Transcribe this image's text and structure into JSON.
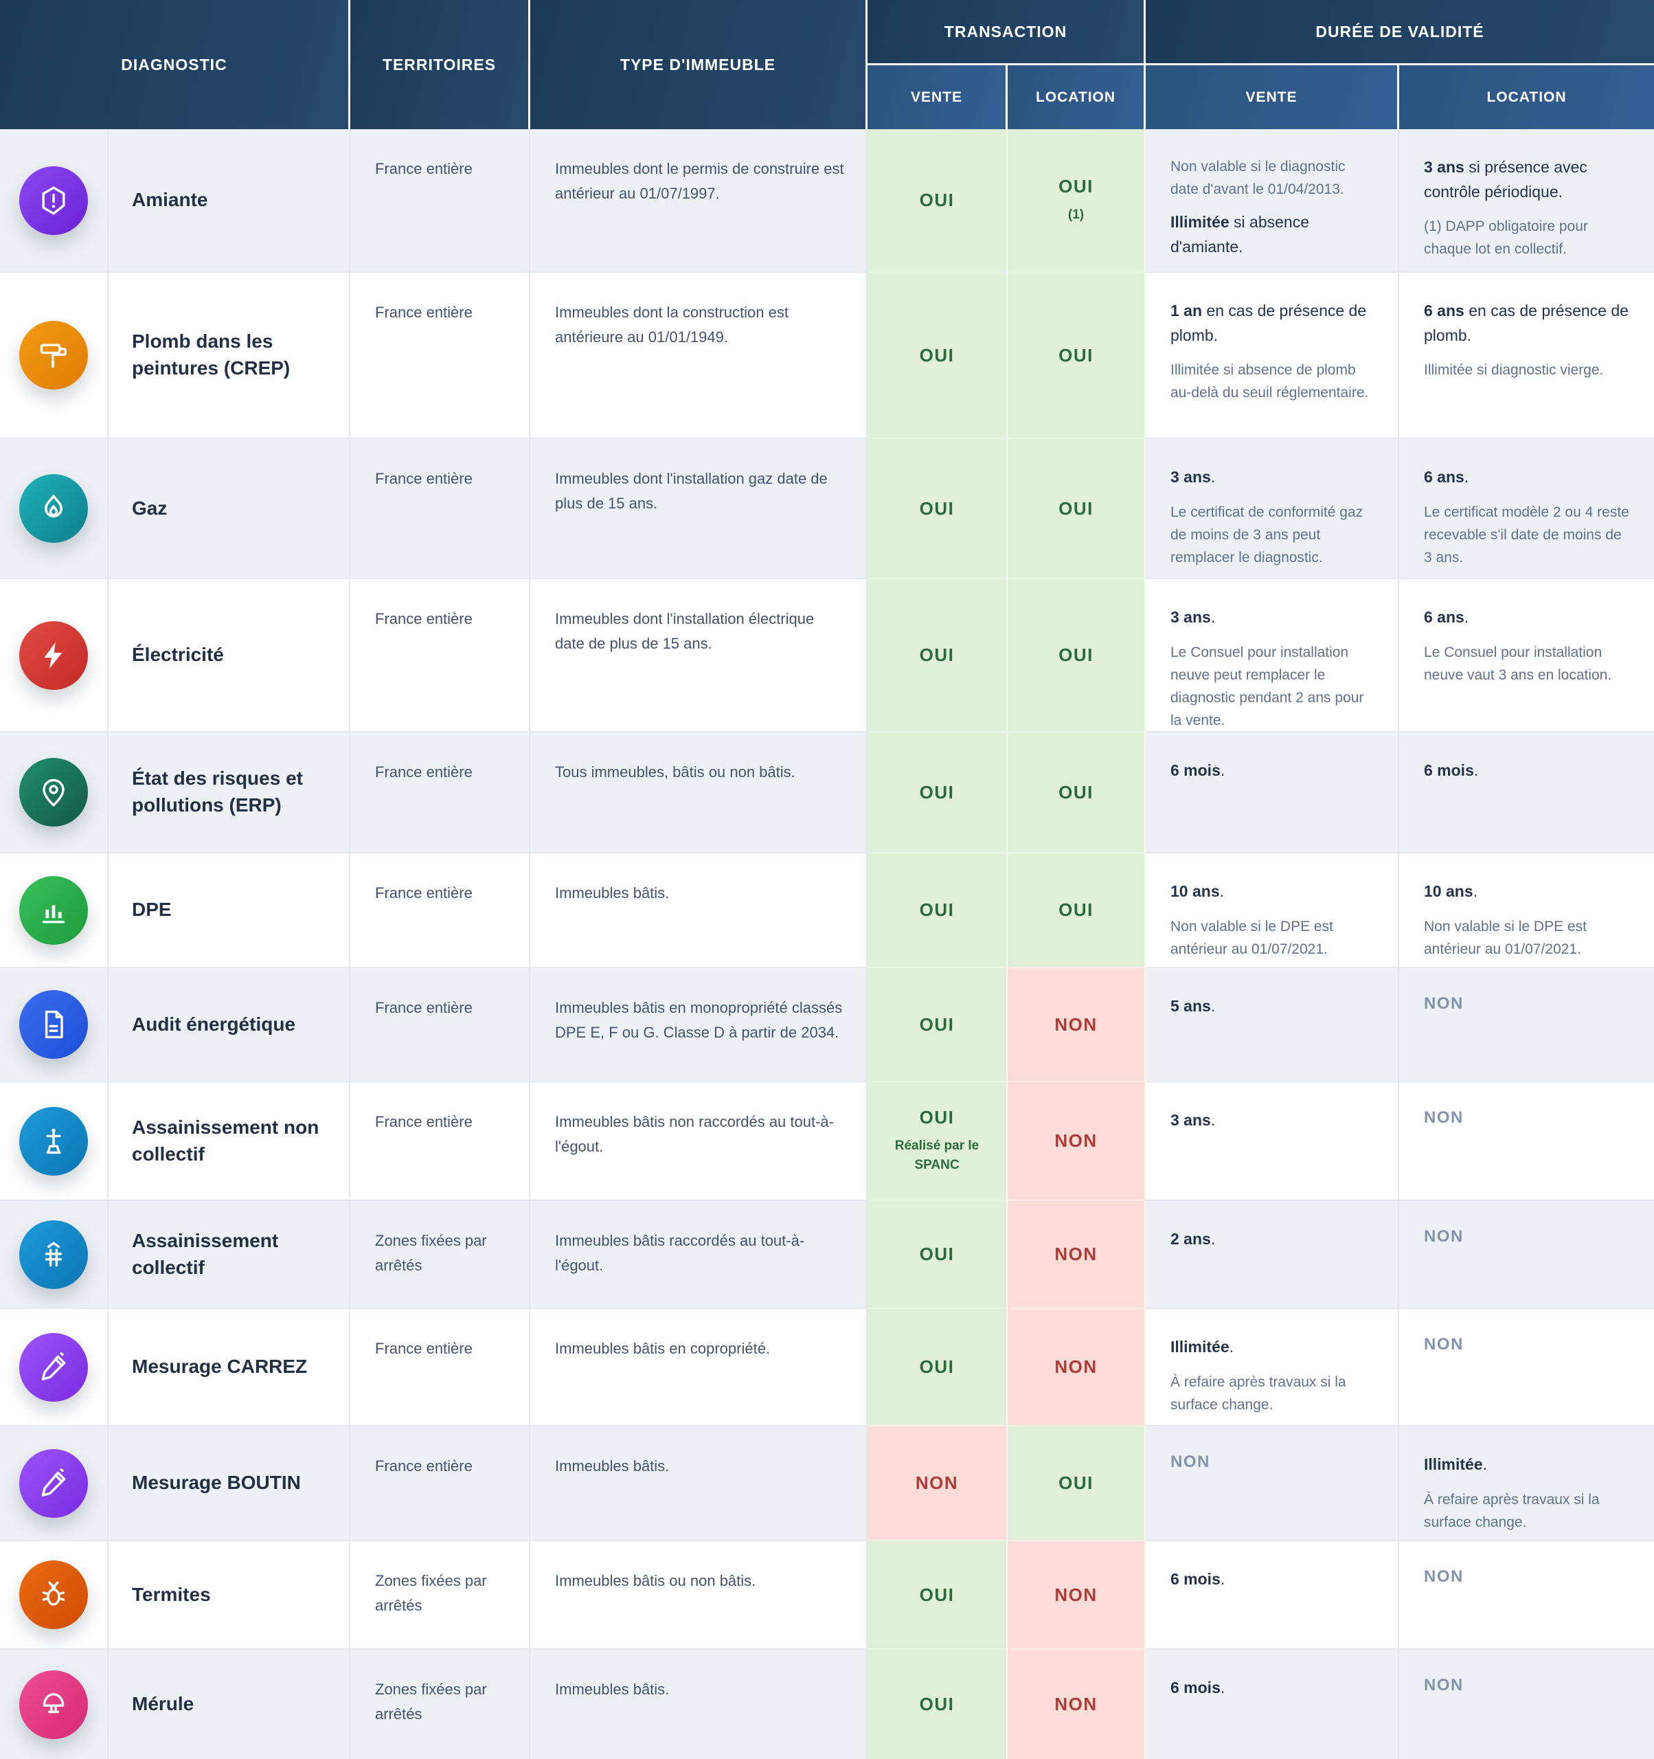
{
  "header": {
    "col_diagnostic": "DIAGNOSTIC",
    "col_territoires": "TERRITOIRES",
    "col_type": "TYPE D'IMMEUBLE",
    "col_transaction": "TRANSACTION",
    "col_duree": "DURÉE DE VALIDITÉ",
    "sub_vente": "VENTE",
    "sub_location": "LOCATION"
  },
  "colors": {
    "header_bg_dark": "#1c3a57",
    "header_bg_light": "#27496c",
    "subheader_bg_dark": "#2b547e",
    "subheader_bg_light": "#336093",
    "row_alt_bg": "#edf1f6",
    "oui_bg": "#e1efd7",
    "non_bg": "#fbdcd6",
    "oui_text": "#2a6b3e",
    "non_text": "#ad3b37",
    "muted_non_text": "#8292aa",
    "title_text": "#232f43",
    "body_text": "#42536b",
    "note_text": "#5f7189",
    "strong_text": "#25334a"
  },
  "rows": [
    {
      "icon": "shield-alert-icon",
      "icon_colors": [
        "#8a4af2",
        "#6b21d6"
      ],
      "name": "Amiante",
      "territoire": "France entière",
      "type": "Immeubles dont le permis de construire est antérieur au 01/07/1997.",
      "vente": {
        "value": "OUI"
      },
      "location": {
        "value": "OUI",
        "sub": "(1)"
      },
      "duree_vente": {
        "note_first": true,
        "note": "Non valable si le diagnostic date d'avant le 01/04/2013.",
        "strong": "Illimitée",
        "rest": " si absence d'amiante."
      },
      "duree_location": {
        "strong": "3 ans",
        "rest": " si présence avec contrôle périodique.",
        "note": "(1) DAPP obligatoire pour chaque lot en collectif."
      }
    },
    {
      "icon": "paint-roller-icon",
      "icon_colors": [
        "#f49a13",
        "#e07c05"
      ],
      "name": "Plomb dans les peintures (CREP)",
      "territoire": "France entière",
      "type": "Immeubles dont la construction est antérieure au 01/01/1949.",
      "vente": {
        "value": "OUI"
      },
      "location": {
        "value": "OUI"
      },
      "duree_vente": {
        "strong": "1 an",
        "rest": " en cas de présence de plomb.",
        "note": "Illimitée si absence de plomb au-delà du seuil réglementaire."
      },
      "duree_location": {
        "strong": "6 ans",
        "rest": " en cas de présence de plomb.",
        "note": "Illimitée si diagnostic vierge."
      }
    },
    {
      "icon": "flame-icon",
      "icon_colors": [
        "#20b3bb",
        "#0e7f8b"
      ],
      "name": "Gaz",
      "territoire": "France entière",
      "type": "Immeubles dont l'installation gaz date de plus de 15 ans.",
      "vente": {
        "value": "OUI"
      },
      "location": {
        "value": "OUI"
      },
      "duree_vente": {
        "strong": "3 ans",
        "rest": ".",
        "note": "Le certificat de conformité gaz de moins de 3 ans peut remplacer le diagnostic."
      },
      "duree_location": {
        "strong": "6 ans",
        "rest": ".",
        "note": "Le certificat modèle 2 ou 4 reste recevable s'il date de moins de 3 ans."
      }
    },
    {
      "icon": "lightning-icon",
      "icon_colors": [
        "#e04b43",
        "#c42b27"
      ],
      "name": "Électricité",
      "territoire": "France entière",
      "type": "Immeubles dont l'installation électrique date de plus de 15 ans.",
      "vente": {
        "value": "OUI"
      },
      "location": {
        "value": "OUI"
      },
      "duree_vente": {
        "strong": "3 ans",
        "rest": ".",
        "note": "Le Consuel pour installation neuve peut remplacer le diagnostic pendant 2 ans pour la vente."
      },
      "duree_location": {
        "strong": "6 ans",
        "rest": ".",
        "note": "Le Consuel pour installation neuve vaut 3 ans en location."
      }
    },
    {
      "icon": "map-pin-icon",
      "icon_colors": [
        "#1f8f6b",
        "#145a44"
      ],
      "name": "État des risques et pollutions (ERP)",
      "territoire": "France entière",
      "type": "Tous immeubles, bâtis ou non bâtis.",
      "vente": {
        "value": "OUI"
      },
      "location": {
        "value": "OUI"
      },
      "duree_vente": {
        "strong": "6 mois",
        "rest": "."
      },
      "duree_location": {
        "strong": "6 mois",
        "rest": "."
      }
    },
    {
      "icon": "bar-chart-icon",
      "icon_colors": [
        "#36c05a",
        "#1e9c3c"
      ],
      "name": "DPE",
      "territoire": "France entière",
      "type": "Immeubles bâtis.",
      "vente": {
        "value": "OUI"
      },
      "location": {
        "value": "OUI"
      },
      "duree_vente": {
        "strong": "10 ans",
        "rest": ".",
        "note": "Non valable si le DPE est antérieur au 01/07/2021."
      },
      "duree_location": {
        "strong": "10 ans",
        "rest": ".",
        "note": "Non valable si le DPE est antérieur au 01/07/2021."
      }
    },
    {
      "icon": "document-icon",
      "icon_colors": [
        "#3a6cf0",
        "#1f4ed6"
      ],
      "name": "Audit énergétique",
      "territoire": "France entière",
      "type": "Immeubles bâtis en monopropriété classés DPE E, F ou G. Classe D à partir de 2034.",
      "vente": {
        "value": "OUI"
      },
      "location": {
        "value": "NON"
      },
      "duree_vente": {
        "strong": "5 ans",
        "rest": "."
      },
      "duree_location": {
        "non": "NON"
      }
    },
    {
      "icon": "water-pump-icon",
      "icon_colors": [
        "#1e9bd8",
        "#0c76b3"
      ],
      "name": "Assainissement non collectif",
      "territoire": "France entière",
      "type": "Immeubles bâtis non raccordés au tout-à-l'égout.",
      "vente": {
        "value": "OUI",
        "sub": "Réalisé par le SPANC"
      },
      "location": {
        "value": "NON"
      },
      "duree_vente": {
        "strong": "3 ans",
        "rest": "."
      },
      "duree_location": {
        "non": "NON"
      }
    },
    {
      "icon": "pipe-icon",
      "icon_colors": [
        "#1e9bd8",
        "#0c76b3"
      ],
      "name": "Assainissement collectif",
      "territoire": "Zones fixées par arrêtés",
      "type": "Immeubles bâtis raccordés au tout-à-l'égout.",
      "vente": {
        "value": "OUI"
      },
      "location": {
        "value": "NON"
      },
      "duree_vente": {
        "strong": "2 ans",
        "rest": "."
      },
      "duree_location": {
        "non": "NON"
      }
    },
    {
      "icon": "pencil-icon",
      "icon_colors": [
        "#9b53f9",
        "#7a2de2"
      ],
      "name": "Mesurage CARREZ",
      "territoire": "France entière",
      "type": "Immeubles bâtis en copropriété.",
      "vente": {
        "value": "OUI"
      },
      "location": {
        "value": "NON"
      },
      "duree_vente": {
        "strong": "Illimitée",
        "rest": ".",
        "note": "À refaire après travaux si la surface change."
      },
      "duree_location": {
        "non": "NON"
      }
    },
    {
      "icon": "pencil-icon",
      "icon_colors": [
        "#9b53f9",
        "#7a2de2"
      ],
      "name": "Mesurage BOUTIN",
      "territoire": "France entière",
      "type": "Immeubles bâtis.",
      "vente": {
        "value": "NON"
      },
      "location": {
        "value": "OUI"
      },
      "duree_vente": {
        "non": "NON"
      },
      "duree_location": {
        "strong": "Illimitée",
        "rest": ".",
        "note": "À refaire après travaux si la surface change."
      }
    },
    {
      "icon": "bug-icon",
      "icon_colors": [
        "#ea6b13",
        "#cf4b04"
      ],
      "name": "Termites",
      "territoire": "Zones fixées par arrêtés",
      "type": "Immeubles bâtis ou non bâtis.",
      "vente": {
        "value": "OUI"
      },
      "location": {
        "value": "NON"
      },
      "duree_vente": {
        "strong": "6 mois",
        "rest": "."
      },
      "duree_location": {
        "non": "NON"
      }
    },
    {
      "icon": "mushroom-icon",
      "icon_colors": [
        "#f04e95",
        "#d52a71"
      ],
      "name": "Mérule",
      "territoire": "Zones fixées par arrêtés",
      "type": "Immeubles bâtis.",
      "vente": {
        "value": "OUI"
      },
      "location": {
        "value": "NON"
      },
      "duree_vente": {
        "strong": "6 mois",
        "rest": "."
      },
      "duree_location": {
        "non": "NON"
      }
    }
  ]
}
